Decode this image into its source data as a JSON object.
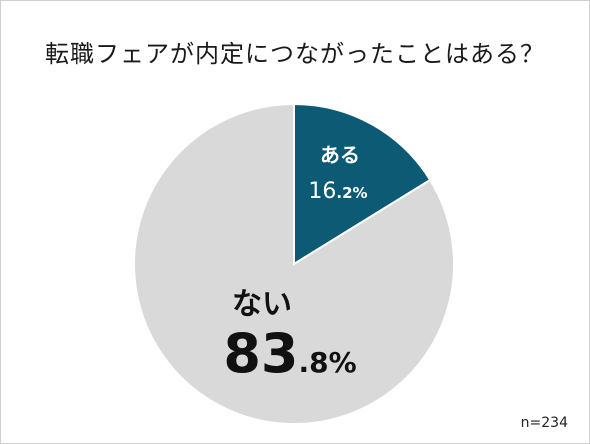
{
  "chart_data": {
    "type": "pie",
    "title": "転職フェアが内定につながったことはある？",
    "slices": [
      {
        "label": "ある",
        "value": 16.2,
        "int": "16",
        "dec": ".2%",
        "color": "#0d5a75",
        "text_color": "#ffffff"
      },
      {
        "label": "ない",
        "value": 83.8,
        "int": "83",
        "dec": ".8%",
        "color": "#d9d9d9",
        "text_color": "#111111"
      }
    ],
    "start": "12 o'clock",
    "direction": "clockwise",
    "legend": "none",
    "note": "n=234"
  }
}
